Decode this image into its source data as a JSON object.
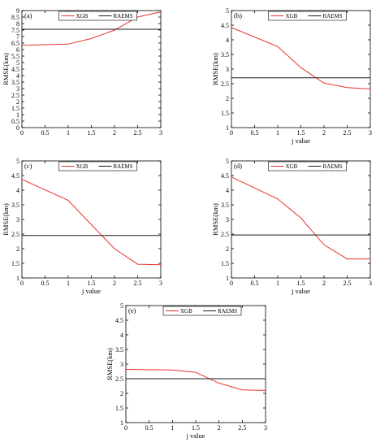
{
  "colors": {
    "xgb": "#e8332b",
    "raems": "#1a1a1a",
    "axis": "#000000"
  },
  "chart_data": [
    {
      "type": "line",
      "panel_label": "(a)",
      "xlabel": "",
      "ylabel": "RMSE(km)",
      "xlim": [
        0,
        3
      ],
      "ylim": [
        0,
        9
      ],
      "xticks": [
        "0",
        "0.5",
        "1",
        "1.5",
        "2",
        "2.5",
        "3"
      ],
      "yticks": [
        "0",
        "0.5",
        "1",
        "1.5",
        "2",
        "2.5",
        "3",
        "3.5",
        "4",
        "4.5",
        "5",
        "5.5",
        "6",
        "6.5",
        "7",
        "7.5",
        "8",
        "8.5",
        "9"
      ],
      "x": [
        0,
        1,
        1.5,
        2,
        2.5,
        3
      ],
      "series": [
        {
          "name": "XGB",
          "values": [
            6.33,
            6.42,
            6.85,
            7.5,
            8.5,
            8.9
          ]
        },
        {
          "name": "RAEMS",
          "values": [
            7.56,
            7.56,
            7.56,
            7.56,
            7.56,
            7.56
          ]
        }
      ],
      "legend": "top-center"
    },
    {
      "type": "line",
      "panel_label": "(b)",
      "xlabel": "j value",
      "ylabel": "RMSE(km)",
      "xlim": [
        0,
        3
      ],
      "ylim": [
        1,
        5
      ],
      "xticks": [
        "0",
        "0.5",
        "1",
        "1.5",
        "2",
        "2.5",
        "3"
      ],
      "yticks": [
        "1",
        "1.5",
        "2",
        "2.5",
        "3",
        "3.5",
        "4",
        "4.5",
        "5"
      ],
      "x": [
        0,
        1,
        1.5,
        2,
        2.5,
        3
      ],
      "series": [
        {
          "name": "XGB",
          "values": [
            4.42,
            3.77,
            3.05,
            2.52,
            2.37,
            2.32
          ]
        },
        {
          "name": "RAEMS",
          "values": [
            2.7,
            2.7,
            2.7,
            2.7,
            2.7,
            2.7
          ]
        }
      ],
      "legend": "top-center"
    },
    {
      "type": "line",
      "panel_label": "(c)",
      "xlabel": "j value",
      "ylabel": "RMSE(km)",
      "xlim": [
        0,
        3
      ],
      "ylim": [
        1,
        5
      ],
      "xticks": [
        "0",
        "0.5",
        "1",
        "1.5",
        "2",
        "2.5",
        "3"
      ],
      "yticks": [
        "1",
        "1.5",
        "2",
        "2.5",
        "3",
        "3.5",
        "4",
        "4.5",
        "5"
      ],
      "x": [
        0,
        1,
        1.5,
        2,
        2.5,
        3
      ],
      "series": [
        {
          "name": "XGB",
          "values": [
            4.37,
            3.65,
            2.82,
            2.0,
            1.47,
            1.45
          ]
        },
        {
          "name": "RAEMS",
          "values": [
            2.45,
            2.45,
            2.45,
            2.45,
            2.45,
            2.45
          ]
        }
      ],
      "legend": "top-center"
    },
    {
      "type": "line",
      "panel_label": "(d)",
      "xlabel": "j value",
      "ylabel": "RMSE(km)",
      "xlim": [
        0,
        3
      ],
      "ylim": [
        1,
        5
      ],
      "xticks": [
        "0",
        "0.5",
        "1",
        "1.5",
        "2",
        "2.5",
        "3"
      ],
      "yticks": [
        "1",
        "1.5",
        "2",
        "2.5",
        "3",
        "3.5",
        "4",
        "4.5",
        "5"
      ],
      "x": [
        0,
        1,
        1.5,
        2,
        2.5,
        3
      ],
      "series": [
        {
          "name": "XGB",
          "values": [
            4.45,
            3.7,
            3.05,
            2.13,
            1.65,
            1.65
          ]
        },
        {
          "name": "RAEMS",
          "values": [
            2.47,
            2.47,
            2.47,
            2.47,
            2.47,
            2.47
          ]
        }
      ],
      "legend": "top-center"
    },
    {
      "type": "line",
      "panel_label": "(e)",
      "xlabel": "j value",
      "ylabel": "RMSE(km)",
      "xlim": [
        0,
        3
      ],
      "ylim": [
        1,
        5
      ],
      "xticks": [
        "0",
        "0.5",
        "1",
        "1.5",
        "2",
        "2.5",
        "3"
      ],
      "yticks": [
        "1",
        "1.5",
        "2",
        "2.5",
        "3",
        "3.5",
        "4",
        "4.5",
        "5"
      ],
      "x": [
        0,
        1,
        1.5,
        2,
        2.5,
        3
      ],
      "series": [
        {
          "name": "XGB",
          "values": [
            2.82,
            2.8,
            2.72,
            2.35,
            2.12,
            2.1
          ]
        },
        {
          "name": "RAEMS",
          "values": [
            2.5,
            2.5,
            2.5,
            2.5,
            2.5,
            2.5
          ]
        }
      ],
      "legend": "top-center"
    }
  ]
}
